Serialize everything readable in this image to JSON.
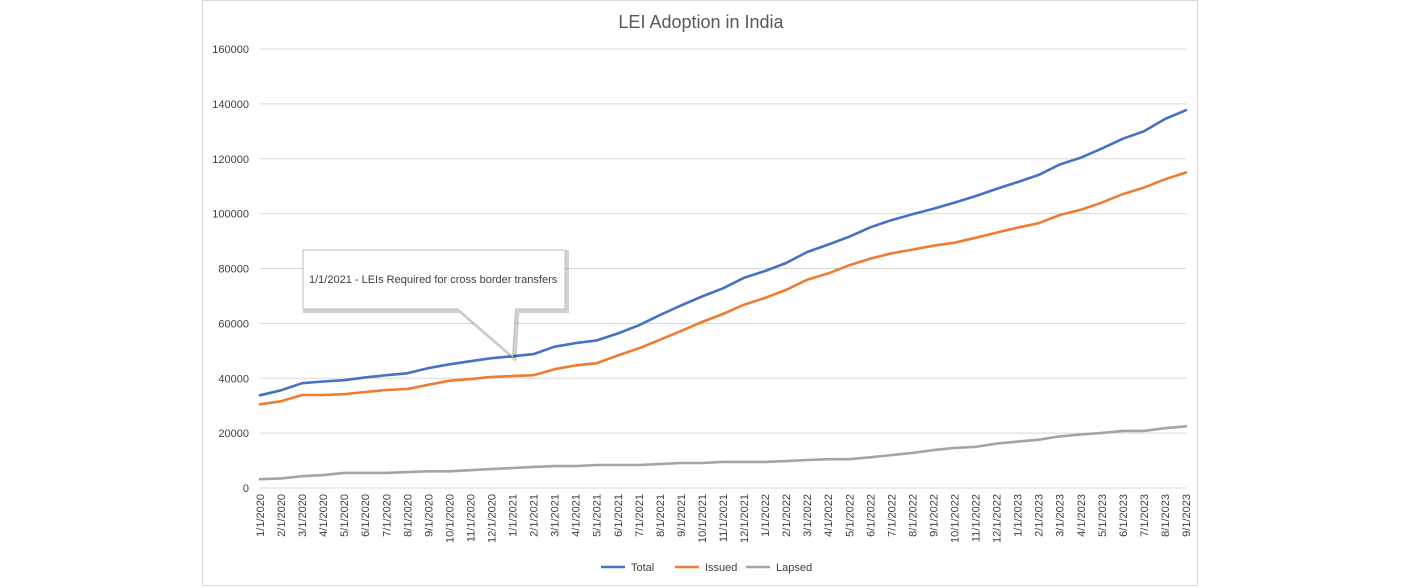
{
  "chart_data": {
    "type": "line",
    "title": "LEI Adoption in India",
    "xlabel": "",
    "ylabel": "",
    "ylim": [
      0,
      160000
    ],
    "yticks": [
      0,
      20000,
      40000,
      60000,
      80000,
      100000,
      120000,
      140000,
      160000
    ],
    "grid": true,
    "legend": "bottom",
    "categories": [
      "1/1/2020",
      "2/1/2020",
      "3/1/2020",
      "4/1/2020",
      "5/1/2020",
      "6/1/2020",
      "7/1/2020",
      "8/1/2020",
      "9/1/2020",
      "10/1/2020",
      "11/1/2020",
      "12/1/2020",
      "1/1/2021",
      "2/1/2021",
      "3/1/2021",
      "4/1/2021",
      "5/1/2021",
      "6/1/2021",
      "7/1/2021",
      "8/1/2021",
      "9/1/2021",
      "10/1/2021",
      "11/1/2021",
      "12/1/2021",
      "1/1/2022",
      "2/1/2022",
      "3/1/2022",
      "4/1/2022",
      "5/1/2022",
      "6/1/2022",
      "7/1/2022",
      "8/1/2022",
      "9/1/2022",
      "10/1/2022",
      "11/1/2022",
      "12/1/2022",
      "1/1/2023",
      "2/1/2023",
      "3/1/2023",
      "4/1/2023",
      "5/1/2023",
      "6/1/2023",
      "7/1/2023",
      "8/1/2023",
      "9/1/2023"
    ],
    "series": [
      {
        "name": "Total",
        "color": "#4472c4",
        "values": [
          33800,
          35600,
          38200,
          38800,
          39300,
          40300,
          41100,
          41800,
          43700,
          45100,
          46200,
          47300,
          48000,
          48800,
          51500,
          52800,
          53800,
          56300,
          59300,
          63000,
          66500,
          69800,
          72800,
          76600,
          79100,
          82000,
          86000,
          88700,
          91600,
          95000,
          97600,
          99800,
          101800,
          104000,
          106400,
          109000,
          111500,
          114100,
          117900,
          120400,
          123700,
          127300,
          130000,
          134500,
          137700
        ]
      },
      {
        "name": "Issued",
        "color": "#ed7d31",
        "values": [
          30500,
          31600,
          33900,
          33900,
          34200,
          35000,
          35700,
          36100,
          37600,
          39100,
          39700,
          40500,
          40800,
          41100,
          43300,
          44700,
          45500,
          48300,
          50900,
          54000,
          57200,
          60500,
          63400,
          66800,
          69300,
          72200,
          75900,
          78200,
          81200,
          83600,
          85500,
          86900,
          88300,
          89400,
          91200,
          93100,
          94900,
          96500,
          99500,
          101400,
          104000,
          107100,
          109500,
          112500,
          115000
        ]
      },
      {
        "name": "Lapsed",
        "color": "#a5a5a5",
        "values": [
          3200,
          3500,
          4300,
          4700,
          5500,
          5500,
          5500,
          5800,
          6100,
          6100,
          6500,
          6900,
          7300,
          7700,
          8000,
          8000,
          8400,
          8400,
          8400,
          8700,
          9100,
          9100,
          9500,
          9500,
          9500,
          9800,
          10200,
          10500,
          10500,
          11200,
          12000,
          12800,
          13800,
          14600,
          15000,
          16200,
          16900,
          17600,
          18800,
          19500,
          20100,
          20800,
          20800,
          21800,
          22500
        ]
      }
    ],
    "annotations": [
      {
        "text": "1/1/2021 -  LEIs Required for cross border transfers",
        "target_category": "1/1/2021",
        "target_series": "Total"
      }
    ]
  }
}
